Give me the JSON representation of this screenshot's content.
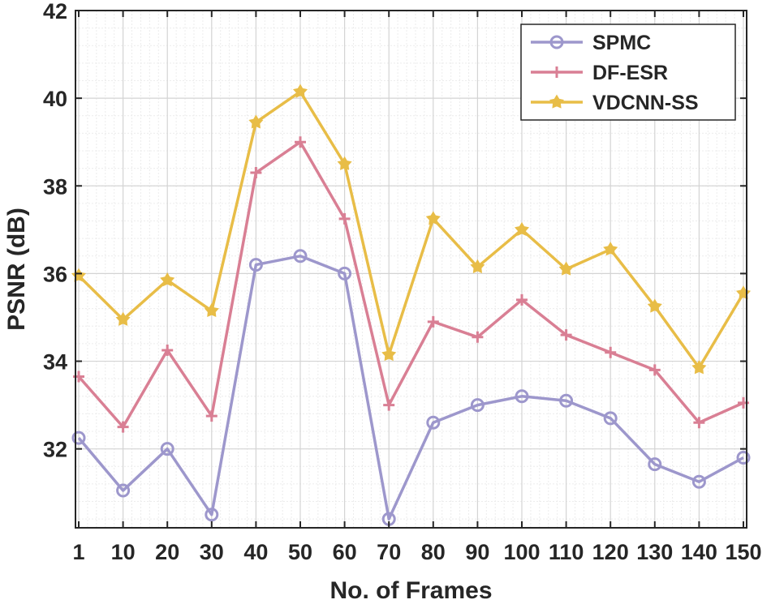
{
  "chart_data": {
    "type": "line",
    "title": "",
    "xlabel": "No. of Frames",
    "ylabel": "PSNR (dB)",
    "x": [
      1,
      10,
      20,
      30,
      40,
      50,
      60,
      70,
      80,
      90,
      100,
      110,
      120,
      130,
      140,
      150
    ],
    "x_tick_labels": [
      "1",
      "10",
      "20",
      "30",
      "40",
      "50",
      "60",
      "70",
      "80",
      "90",
      "100",
      "110",
      "120",
      "130",
      "140",
      "150"
    ],
    "ylim": [
      30.2,
      42
    ],
    "y_ticks": [
      32,
      34,
      36,
      38,
      40,
      42
    ],
    "y_tick_labels": [
      "32",
      "34",
      "36",
      "38",
      "40",
      "42"
    ],
    "grid": true,
    "minor_grid": true,
    "legend_position": "top-right",
    "series": [
      {
        "name": "SPMC",
        "color": "#9d97cc",
        "marker": "circle",
        "values": [
          32.25,
          31.05,
          32.0,
          30.5,
          36.2,
          36.4,
          36.0,
          30.4,
          32.6,
          33.0,
          33.2,
          33.1,
          32.7,
          31.65,
          31.25,
          31.8
        ]
      },
      {
        "name": "DF-ESR",
        "color": "#d97f94",
        "marker": "plus",
        "values": [
          33.65,
          32.5,
          34.25,
          32.75,
          38.3,
          39.0,
          37.25,
          33.0,
          34.9,
          34.55,
          35.4,
          34.6,
          34.2,
          33.8,
          32.6,
          33.05
        ]
      },
      {
        "name": "VDCNN-SS",
        "color": "#e8bd47",
        "marker": "star",
        "values": [
          35.95,
          34.95,
          35.85,
          35.15,
          39.45,
          40.15,
          38.5,
          34.15,
          37.25,
          36.15,
          37.0,
          36.1,
          36.55,
          35.25,
          33.85,
          35.55
        ]
      }
    ]
  }
}
